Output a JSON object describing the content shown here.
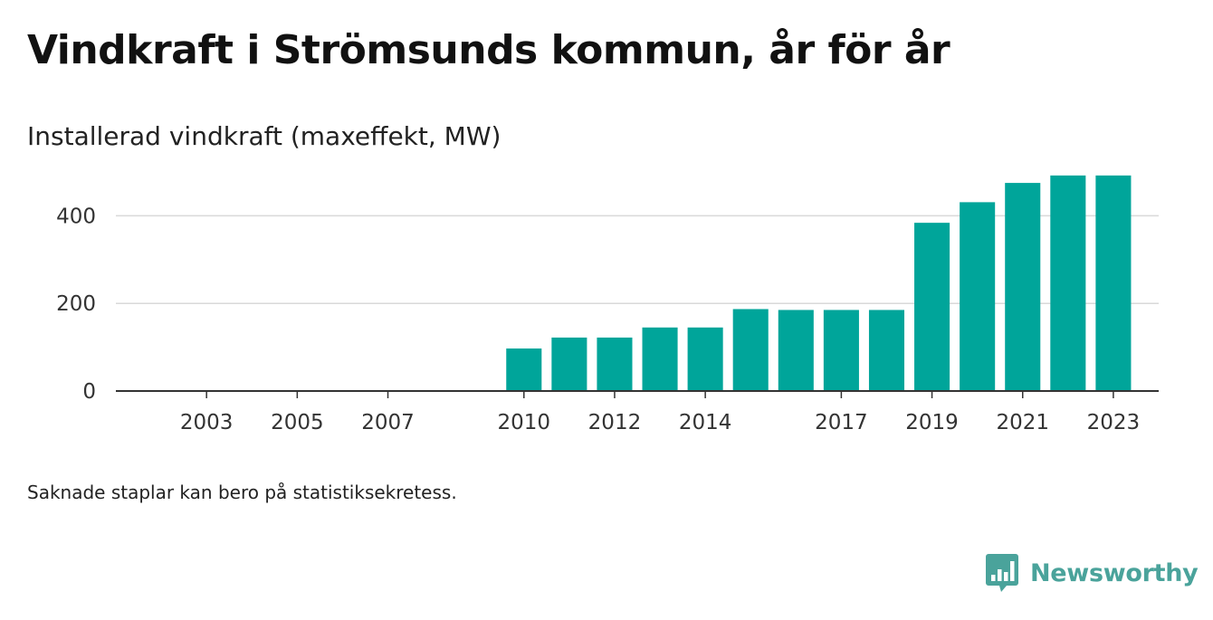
{
  "title": "Vindkraft i Strömsunds kommun, år för år",
  "subtitle": "Installerad vindkraft (maxeffekt, MW)",
  "footnote": "Saknade staplar kan bero på statistiksekretess.",
  "brand": {
    "name": "Newsworthy",
    "icon": "newsworthy-logo-icon",
    "color": "#4aa39b"
  },
  "chart_data": {
    "type": "bar",
    "title": "Vindkraft i Strömsunds kommun, år för år",
    "subtitle": "Installerad vindkraft (maxeffekt, MW)",
    "xlabel": "",
    "ylabel": "",
    "x_range": [
      2001,
      2024
    ],
    "ylim": [
      0,
      500
    ],
    "y_ticks": [
      0,
      200,
      400
    ],
    "x_ticks": [
      2003,
      2005,
      2007,
      2010,
      2012,
      2014,
      2017,
      2019,
      2021,
      2023
    ],
    "grid": true,
    "legend": "none",
    "bar_color": "#00a59a",
    "categories": [
      2010,
      2011,
      2012,
      2013,
      2014,
      2015,
      2016,
      2017,
      2018,
      2019,
      2020,
      2021,
      2022,
      2023
    ],
    "values": [
      97,
      122,
      122,
      145,
      145,
      187,
      185,
      185,
      185,
      384,
      431,
      475,
      492,
      492
    ]
  }
}
